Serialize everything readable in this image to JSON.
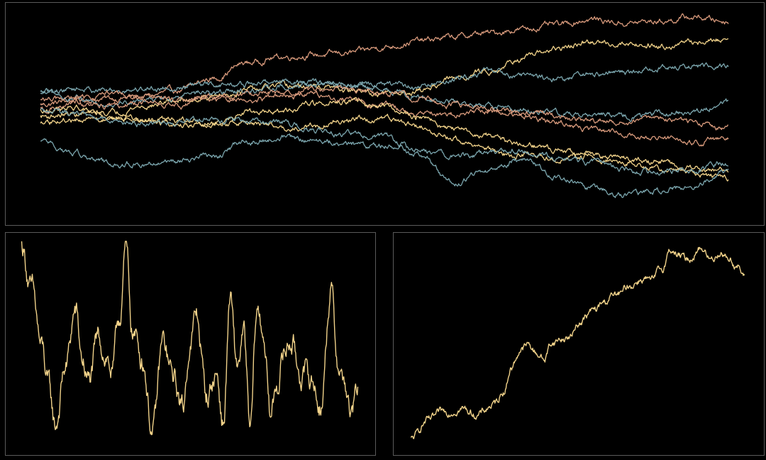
{
  "chart_data": [
    {
      "type": "line",
      "title": "",
      "xlabel": "",
      "ylabel": "",
      "grid": false,
      "legend": "none",
      "background": "#000000",
      "frame_color": "#5a5a5a",
      "x": [
        0,
        0.05,
        0.1,
        0.15,
        0.2,
        0.25,
        0.3,
        0.35,
        0.4,
        0.45,
        0.5,
        0.55,
        0.6,
        0.65,
        0.7,
        0.75,
        0.8,
        0.85,
        0.9,
        0.95,
        1.0
      ],
      "xlim": [
        0,
        1
      ],
      "ylim": [
        0,
        1
      ],
      "noise_amplitude": 0.012,
      "series": [
        {
          "color": "#d89a7c",
          "values": [
            0.53,
            0.55,
            0.56,
            0.57,
            0.6,
            0.66,
            0.74,
            0.77,
            0.78,
            0.79,
            0.82,
            0.85,
            0.87,
            0.89,
            0.91,
            0.93,
            0.96,
            0.94,
            0.95,
            0.97,
            0.95
          ]
        },
        {
          "color": "#f2d38a",
          "values": [
            0.47,
            0.48,
            0.49,
            0.52,
            0.55,
            0.57,
            0.6,
            0.62,
            0.62,
            0.6,
            0.58,
            0.6,
            0.66,
            0.7,
            0.76,
            0.81,
            0.84,
            0.84,
            0.83,
            0.84,
            0.86
          ]
        },
        {
          "color": "#7ba6ae",
          "values": [
            0.59,
            0.61,
            0.6,
            0.61,
            0.62,
            0.63,
            0.63,
            0.65,
            0.64,
            0.63,
            0.63,
            0.62,
            0.65,
            0.7,
            0.68,
            0.66,
            0.68,
            0.69,
            0.71,
            0.72,
            0.73
          ]
        },
        {
          "color": "#7ba6ae",
          "values": [
            0.58,
            0.56,
            0.54,
            0.55,
            0.57,
            0.59,
            0.6,
            0.62,
            0.63,
            0.62,
            0.6,
            0.57,
            0.54,
            0.52,
            0.5,
            0.49,
            0.48,
            0.47,
            0.48,
            0.5,
            0.54
          ]
        },
        {
          "color": "#d89a7c",
          "values": [
            0.55,
            0.56,
            0.58,
            0.57,
            0.55,
            0.57,
            0.58,
            0.59,
            0.6,
            0.61,
            0.59,
            0.56,
            0.53,
            0.5,
            0.47,
            0.44,
            0.41,
            0.38,
            0.36,
            0.34,
            0.36
          ]
        },
        {
          "color": "#d89a7c",
          "values": [
            0.51,
            0.53,
            0.52,
            0.54,
            0.53,
            0.56,
            0.55,
            0.57,
            0.58,
            0.56,
            0.52,
            0.49,
            0.48,
            0.49,
            0.5,
            0.47,
            0.45,
            0.44,
            0.46,
            0.43,
            0.41
          ]
        },
        {
          "color": "#f2d38a",
          "values": [
            0.5,
            0.51,
            0.47,
            0.46,
            0.45,
            0.44,
            0.48,
            0.5,
            0.53,
            0.55,
            0.52,
            0.46,
            0.41,
            0.37,
            0.33,
            0.3,
            0.27,
            0.26,
            0.24,
            0.21,
            0.2
          ]
        },
        {
          "color": "#f2d38a",
          "values": [
            0.43,
            0.45,
            0.46,
            0.45,
            0.43,
            0.43,
            0.44,
            0.4,
            0.42,
            0.45,
            0.46,
            0.42,
            0.36,
            0.3,
            0.27,
            0.26,
            0.27,
            0.24,
            0.2,
            0.18,
            0.16
          ]
        },
        {
          "color": "#7ba6ae",
          "values": [
            0.5,
            0.48,
            0.45,
            0.43,
            0.44,
            0.45,
            0.45,
            0.44,
            0.4,
            0.38,
            0.36,
            0.3,
            0.27,
            0.28,
            0.3,
            0.26,
            0.24,
            0.2,
            0.19,
            0.2,
            0.24
          ]
        },
        {
          "color": "#7ba6ae",
          "values": [
            0.34,
            0.28,
            0.24,
            0.23,
            0.25,
            0.27,
            0.34,
            0.36,
            0.35,
            0.33,
            0.32,
            0.28,
            0.14,
            0.2,
            0.25,
            0.17,
            0.11,
            0.07,
            0.09,
            0.12,
            0.2
          ]
        }
      ]
    },
    {
      "type": "line",
      "title": "",
      "xlabel": "",
      "ylabel": "",
      "grid": false,
      "legend": "none",
      "background": "#000000",
      "frame_color": "#5a5a5a",
      "x": [
        0,
        0.03,
        0.06,
        0.08,
        0.1,
        0.13,
        0.16,
        0.18,
        0.2,
        0.23,
        0.25,
        0.27,
        0.29,
        0.31,
        0.33,
        0.36,
        0.39,
        0.42,
        0.45,
        0.48,
        0.5,
        0.52,
        0.55,
        0.58,
        0.6,
        0.62,
        0.64,
        0.66,
        0.68,
        0.7,
        0.72,
        0.74,
        0.76,
        0.78,
        0.8,
        0.83,
        0.86,
        0.89,
        0.92,
        0.94,
        0.96,
        0.98,
        1.0
      ],
      "xlim": [
        0,
        1
      ],
      "ylim": [
        0,
        1
      ],
      "noise_amplitude": 0.05,
      "series": [
        {
          "color": "#f2d38a",
          "values": [
            0.98,
            0.75,
            0.46,
            0.27,
            0.08,
            0.37,
            0.65,
            0.41,
            0.3,
            0.51,
            0.44,
            0.35,
            0.61,
            0.95,
            0.55,
            0.42,
            0.05,
            0.49,
            0.32,
            0.17,
            0.49,
            0.63,
            0.23,
            0.34,
            0.09,
            0.71,
            0.37,
            0.53,
            0.04,
            0.65,
            0.54,
            0.12,
            0.3,
            0.44,
            0.51,
            0.35,
            0.31,
            0.19,
            0.76,
            0.41,
            0.3,
            0.12,
            0.25
          ]
        }
      ]
    },
    {
      "type": "line",
      "title": "",
      "xlabel": "",
      "ylabel": "",
      "grid": false,
      "legend": "none",
      "background": "#000000",
      "frame_color": "#5a5a5a",
      "x": [
        0,
        0.05,
        0.1,
        0.15,
        0.2,
        0.25,
        0.28,
        0.3,
        0.33,
        0.35,
        0.38,
        0.4,
        0.42,
        0.45,
        0.48,
        0.5,
        0.55,
        0.58,
        0.6,
        0.63,
        0.65,
        0.7,
        0.72,
        0.75,
        0.78,
        0.8,
        0.83,
        0.87,
        0.9,
        0.93,
        0.95,
        0.98,
        1.0
      ],
      "xlim": [
        0,
        1
      ],
      "ylim": [
        0,
        1
      ],
      "noise_amplitude": 0.015,
      "series": [
        {
          "color": "#f2d38a",
          "values": [
            0.03,
            0.12,
            0.16,
            0.18,
            0.15,
            0.2,
            0.27,
            0.38,
            0.47,
            0.49,
            0.45,
            0.42,
            0.5,
            0.52,
            0.53,
            0.6,
            0.66,
            0.7,
            0.73,
            0.74,
            0.78,
            0.82,
            0.8,
            0.86,
            0.96,
            0.93,
            0.91,
            0.97,
            0.91,
            0.95,
            0.92,
            0.88,
            0.82
          ]
        }
      ]
    }
  ]
}
